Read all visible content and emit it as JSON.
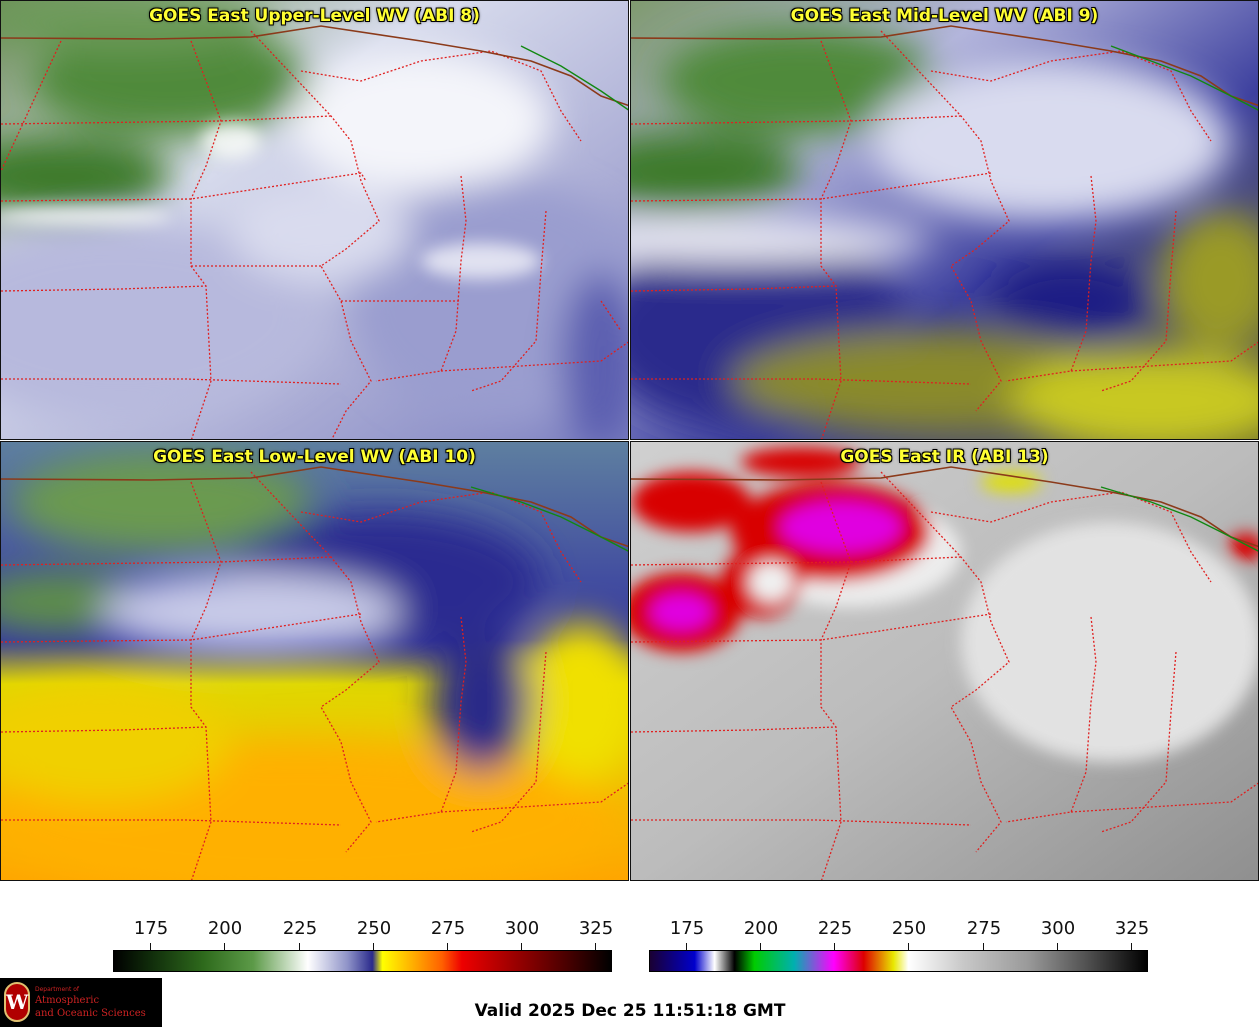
{
  "panels": [
    {
      "title": "GOES East Upper-Level WV (ABI 8)"
    },
    {
      "title": "GOES East Mid-Level WV (ABI 9)"
    },
    {
      "title": "GOES East Low-Level WV (ABI 10)"
    },
    {
      "title": "GOES East IR (ABI 13)"
    }
  ],
  "colorbars": {
    "wv": {
      "ticks": [
        "175",
        "200",
        "225",
        "250",
        "275",
        "300",
        "325"
      ]
    },
    "ir": {
      "ticks": [
        "175",
        "200",
        "225",
        "250",
        "275",
        "300",
        "325"
      ]
    }
  },
  "valid_time": "Valid 2025 Dec 25 11:51:18 GMT",
  "logo": {
    "line1": "Department of",
    "line2": "Atmospheric",
    "line3": "and Oceanic Sciences",
    "mark": "W"
  },
  "colors": {
    "state_borders": "#e02020",
    "country_border": "#8b3a1a",
    "canada_border": "#118811",
    "title_text": "#ffff33"
  }
}
